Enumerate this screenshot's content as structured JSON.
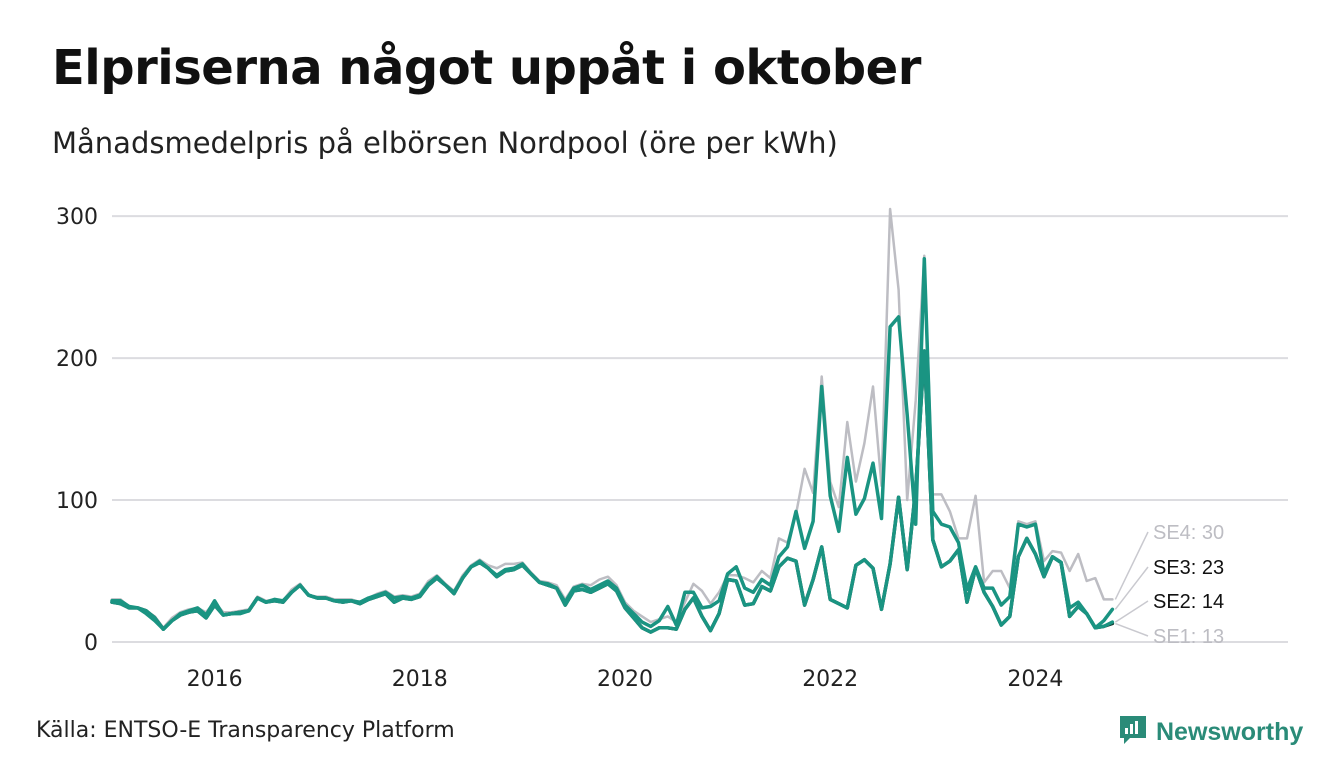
{
  "title": "Elpriserna något uppåt i oktober",
  "subtitle": "Månadsmedelpris på elbörsen Nordpool (öre per kWh)",
  "source": "Källa: ENTSO-E Transparency Platform",
  "brand": {
    "name": "Newsworthy",
    "icon": "newsworthy-logo-icon",
    "color": "#2a8b78"
  },
  "colors": {
    "SE1": "#173d33",
    "SE2": "#1a9482",
    "SE3": "#1a9482",
    "SE4": "#bdbdc3",
    "grid": "#dcdce0"
  },
  "chart_data": {
    "type": "line",
    "x_start": "2015-01",
    "x_end": "2024-10",
    "xticks": [
      "2016",
      "2018",
      "2020",
      "2022",
      "2024"
    ],
    "yticks": [
      "0",
      "100",
      "200",
      "300"
    ],
    "ylim": [
      0,
      305
    ],
    "grid": true,
    "series": [
      {
        "name": "SE1",
        "color": "#173d33",
        "values": [
          28,
          27,
          24,
          24,
          22,
          17,
          9,
          15,
          19,
          21,
          22,
          17,
          26,
          19,
          20,
          21,
          22,
          31,
          28,
          29,
          28,
          35,
          40,
          33,
          31,
          31,
          29,
          28,
          29,
          27,
          30,
          32,
          34,
          28,
          31,
          30,
          32,
          40,
          45,
          40,
          34,
          45,
          53,
          56,
          52,
          46,
          50,
          51,
          54,
          48,
          42,
          40,
          38,
          26,
          36,
          37,
          35,
          38,
          41,
          36,
          24,
          17,
          10,
          7,
          10,
          10,
          9,
          23,
          31,
          18,
          8,
          20,
          44,
          43,
          26,
          27,
          39,
          36,
          53,
          59,
          57,
          26,
          44,
          67,
          30,
          27,
          24,
          54,
          58,
          52,
          23,
          55,
          102,
          51,
          108,
          205,
          72,
          53,
          57,
          65,
          28,
          52,
          35,
          25,
          12,
          18,
          60,
          73,
          62,
          46,
          60,
          56,
          18,
          25,
          20,
          10,
          11,
          13
        ]
      },
      {
        "name": "SE2",
        "color": "#1a9482",
        "values": [
          28,
          27,
          24,
          24,
          22,
          17,
          9,
          15,
          19,
          21,
          22,
          17,
          26,
          19,
          20,
          21,
          22,
          31,
          28,
          29,
          28,
          35,
          40,
          33,
          31,
          31,
          29,
          28,
          29,
          27,
          30,
          32,
          34,
          28,
          31,
          30,
          32,
          40,
          45,
          40,
          34,
          45,
          53,
          56,
          52,
          46,
          50,
          51,
          54,
          48,
          42,
          40,
          38,
          26,
          36,
          37,
          35,
          38,
          41,
          36,
          24,
          17,
          10,
          7,
          10,
          10,
          9,
          23,
          31,
          18,
          8,
          20,
          44,
          43,
          26,
          27,
          39,
          36,
          53,
          59,
          57,
          26,
          44,
          67,
          30,
          27,
          24,
          54,
          58,
          52,
          23,
          55,
          102,
          51,
          108,
          205,
          72,
          53,
          57,
          65,
          28,
          52,
          35,
          25,
          12,
          18,
          60,
          73,
          62,
          46,
          60,
          56,
          18,
          25,
          20,
          10,
          11,
          14
        ]
      },
      {
        "name": "SE3",
        "color": "#1a9482",
        "values": [
          29,
          29,
          25,
          24,
          20,
          15,
          9,
          15,
          20,
          22,
          24,
          19,
          29,
          19,
          20,
          20,
          22,
          31,
          28,
          30,
          29,
          35,
          40,
          33,
          31,
          31,
          29,
          29,
          29,
          28,
          31,
          33,
          35,
          31,
          32,
          31,
          33,
          41,
          46,
          40,
          35,
          45,
          53,
          57,
          52,
          47,
          51,
          52,
          55,
          48,
          42,
          41,
          38,
          28,
          38,
          40,
          37,
          40,
          43,
          38,
          26,
          20,
          14,
          11,
          15,
          25,
          12,
          35,
          35,
          24,
          25,
          29,
          48,
          53,
          38,
          35,
          44,
          40,
          60,
          67,
          92,
          66,
          85,
          180,
          103,
          78,
          130,
          90,
          101,
          126,
          87,
          222,
          229,
          160,
          83,
          270,
          92,
          83,
          81,
          70,
          37,
          53,
          38,
          38,
          26,
          32,
          83,
          81,
          83,
          48,
          60,
          56,
          24,
          28,
          20,
          10,
          15,
          23
        ]
      },
      {
        "name": "SE4",
        "color": "#bdbdc3",
        "values": [
          30,
          30,
          25,
          24,
          22,
          18,
          10,
          17,
          21,
          23,
          24,
          21,
          28,
          21,
          21,
          22,
          23,
          32,
          29,
          30,
          29,
          37,
          41,
          33,
          32,
          32,
          30,
          30,
          30,
          28,
          31,
          34,
          36,
          32,
          33,
          32,
          34,
          43,
          47,
          41,
          36,
          47,
          54,
          58,
          54,
          52,
          55,
          55,
          56,
          49,
          43,
          42,
          40,
          30,
          39,
          41,
          40,
          44,
          46,
          40,
          28,
          22,
          18,
          14,
          16,
          18,
          14,
          28,
          41,
          36,
          27,
          35,
          47,
          47,
          45,
          42,
          50,
          45,
          73,
          70,
          90,
          122,
          105,
          187,
          113,
          95,
          155,
          113,
          140,
          180,
          110,
          305,
          248,
          100,
          170,
          272,
          104,
          104,
          92,
          73,
          73,
          103,
          42,
          50,
          50,
          38,
          85,
          83,
          85,
          57,
          64,
          63,
          50,
          62,
          43,
          45,
          30,
          30
        ]
      }
    ],
    "end_labels": [
      {
        "series": "SE4",
        "text": "SE4: 30",
        "color": "#bdbdc3"
      },
      {
        "series": "SE3",
        "text": "SE3: 23",
        "color": "#111111"
      },
      {
        "series": "SE2",
        "text": "SE2: 14",
        "color": "#111111"
      },
      {
        "series": "SE1",
        "text": "SE1: 13",
        "color": "#bdbdc3"
      }
    ]
  }
}
